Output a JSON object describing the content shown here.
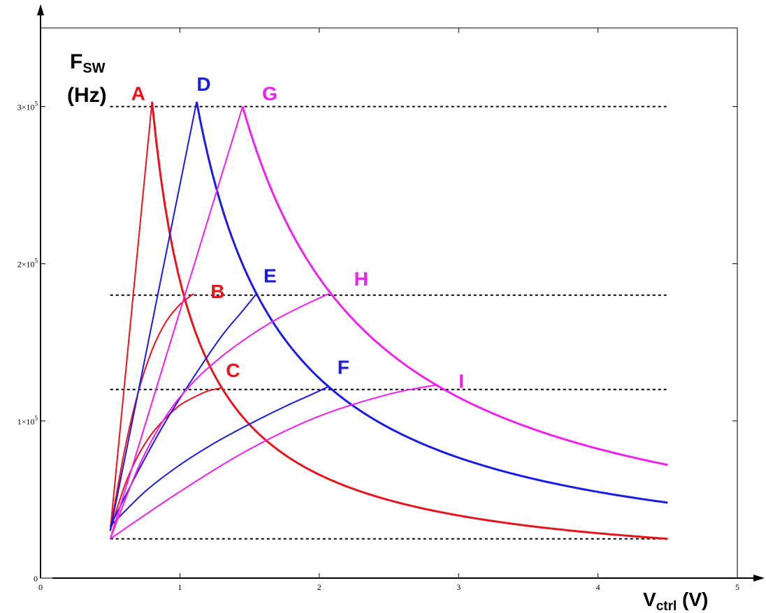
{
  "chart_data": {
    "type": "line",
    "ylabel_main": "F",
    "ylabel_sub": "SW",
    "ylabel_unit": "(Hz)",
    "xlabel_main": "V",
    "xlabel_sub": "ctrl",
    "xlabel_unit": " (V)",
    "xlim": [
      0,
      5
    ],
    "ylim": [
      0,
      350000
    ],
    "x_ticks": [
      {
        "value": 0,
        "label": "0"
      },
      {
        "value": 1,
        "label": "1"
      },
      {
        "value": 2,
        "label": "2"
      },
      {
        "value": 3,
        "label": "3"
      },
      {
        "value": 4,
        "label": "4"
      },
      {
        "value": 5,
        "label": "5"
      }
    ],
    "y_ticks": [
      {
        "value": 0,
        "label": "0"
      },
      {
        "value": 100000,
        "label": "1×10",
        "exp": "5"
      },
      {
        "value": 200000,
        "label": "2×10",
        "exp": "5"
      },
      {
        "value": 300000,
        "label": "3×10",
        "exp": "5"
      }
    ],
    "reference_lines": [
      {
        "y": 300000,
        "x_range": [
          0.5,
          4.5
        ]
      },
      {
        "y": 180000,
        "x_range": [
          0.5,
          4.5
        ]
      },
      {
        "y": 120000,
        "x_range": [
          0.5,
          4.5
        ]
      },
      {
        "y": 25000,
        "x_range": [
          0.5,
          4.5
        ]
      }
    ],
    "colors": {
      "red": "#e8141c",
      "blue": "#1a1ae6",
      "magenta": "#f020f0"
    },
    "series": [
      {
        "color": "red",
        "kind": "rise",
        "points": [
          [
            0.5,
            30000
          ],
          [
            0.8,
            303000
          ]
        ]
      },
      {
        "color": "red",
        "kind": "rise",
        "points": [
          [
            0.5,
            30000
          ],
          [
            0.6,
            80000
          ],
          [
            0.7,
            118000
          ],
          [
            0.8,
            145000
          ],
          [
            0.9,
            163000
          ],
          [
            1.0,
            174000
          ],
          [
            1.1,
            181000
          ]
        ]
      },
      {
        "color": "red",
        "kind": "rise",
        "points": [
          [
            0.5,
            30000
          ],
          [
            0.6,
            58000
          ],
          [
            0.7,
            78000
          ],
          [
            0.8,
            92000
          ],
          [
            0.9,
            102000
          ],
          [
            1.0,
            110000
          ],
          [
            1.1,
            115000
          ],
          [
            1.2,
            119000
          ],
          [
            1.3,
            121000
          ]
        ]
      },
      {
        "color": "red",
        "kind": "decay",
        "peak": [
          0.8,
          303000
        ],
        "end": [
          4.5,
          25000
        ]
      },
      {
        "color": "blue",
        "kind": "rise",
        "points": [
          [
            0.5,
            30000
          ],
          [
            1.12,
            303000
          ]
        ]
      },
      {
        "color": "blue",
        "kind": "rise",
        "points": [
          [
            0.5,
            33000
          ],
          [
            0.7,
            68000
          ],
          [
            0.9,
            100000
          ],
          [
            1.1,
            128000
          ],
          [
            1.3,
            154000
          ],
          [
            1.45,
            170000
          ],
          [
            1.55,
            181000
          ]
        ]
      },
      {
        "color": "blue",
        "kind": "rise",
        "points": [
          [
            0.5,
            33000
          ],
          [
            0.75,
            55000
          ],
          [
            1.0,
            72000
          ],
          [
            1.25,
            86000
          ],
          [
            1.5,
            98000
          ],
          [
            1.75,
            109000
          ],
          [
            1.95,
            117000
          ],
          [
            2.07,
            122000
          ]
        ]
      },
      {
        "color": "blue",
        "kind": "decay",
        "peak": [
          1.12,
          303000
        ],
        "end": [
          4.5,
          48000
        ]
      },
      {
        "color": "magenta",
        "kind": "rise",
        "points": [
          [
            0.5,
            25000
          ],
          [
            1.45,
            300000
          ]
        ]
      },
      {
        "color": "magenta",
        "kind": "rise",
        "points": [
          [
            0.5,
            25000
          ],
          [
            0.7,
            70000
          ],
          [
            0.9,
            103000
          ],
          [
            1.1,
            125000
          ],
          [
            1.3,
            141000
          ],
          [
            1.5,
            154000
          ],
          [
            1.7,
            165000
          ],
          [
            1.9,
            174000
          ],
          [
            2.07,
            181000
          ]
        ]
      },
      {
        "color": "magenta",
        "kind": "rise",
        "points": [
          [
            0.5,
            25000
          ],
          [
            1.0,
            55000
          ],
          [
            1.5,
            82000
          ],
          [
            2.0,
            103000
          ],
          [
            2.5,
            117000
          ],
          [
            2.85,
            123000
          ]
        ]
      },
      {
        "color": "magenta",
        "kind": "decay",
        "peak": [
          1.45,
          300000
        ],
        "end": [
          4.5,
          72000
        ]
      }
    ],
    "annotations": [
      {
        "text": "A",
        "color": "red",
        "x": 0.65,
        "y": 304000
      },
      {
        "text": "B",
        "color": "red",
        "x": 1.22,
        "y": 178000
      },
      {
        "text": "C",
        "color": "red",
        "x": 1.33,
        "y": 128000
      },
      {
        "text": "D",
        "color": "blue",
        "x": 1.12,
        "y": 310000
      },
      {
        "text": "E",
        "color": "blue",
        "x": 1.6,
        "y": 188000
      },
      {
        "text": "F",
        "color": "blue",
        "x": 2.13,
        "y": 130000
      },
      {
        "text": "G",
        "color": "magenta",
        "x": 1.59,
        "y": 304000
      },
      {
        "text": "H",
        "color": "magenta",
        "x": 2.25,
        "y": 186000
      },
      {
        "text": "I",
        "color": "magenta",
        "x": 3.0,
        "y": 121000
      }
    ]
  }
}
